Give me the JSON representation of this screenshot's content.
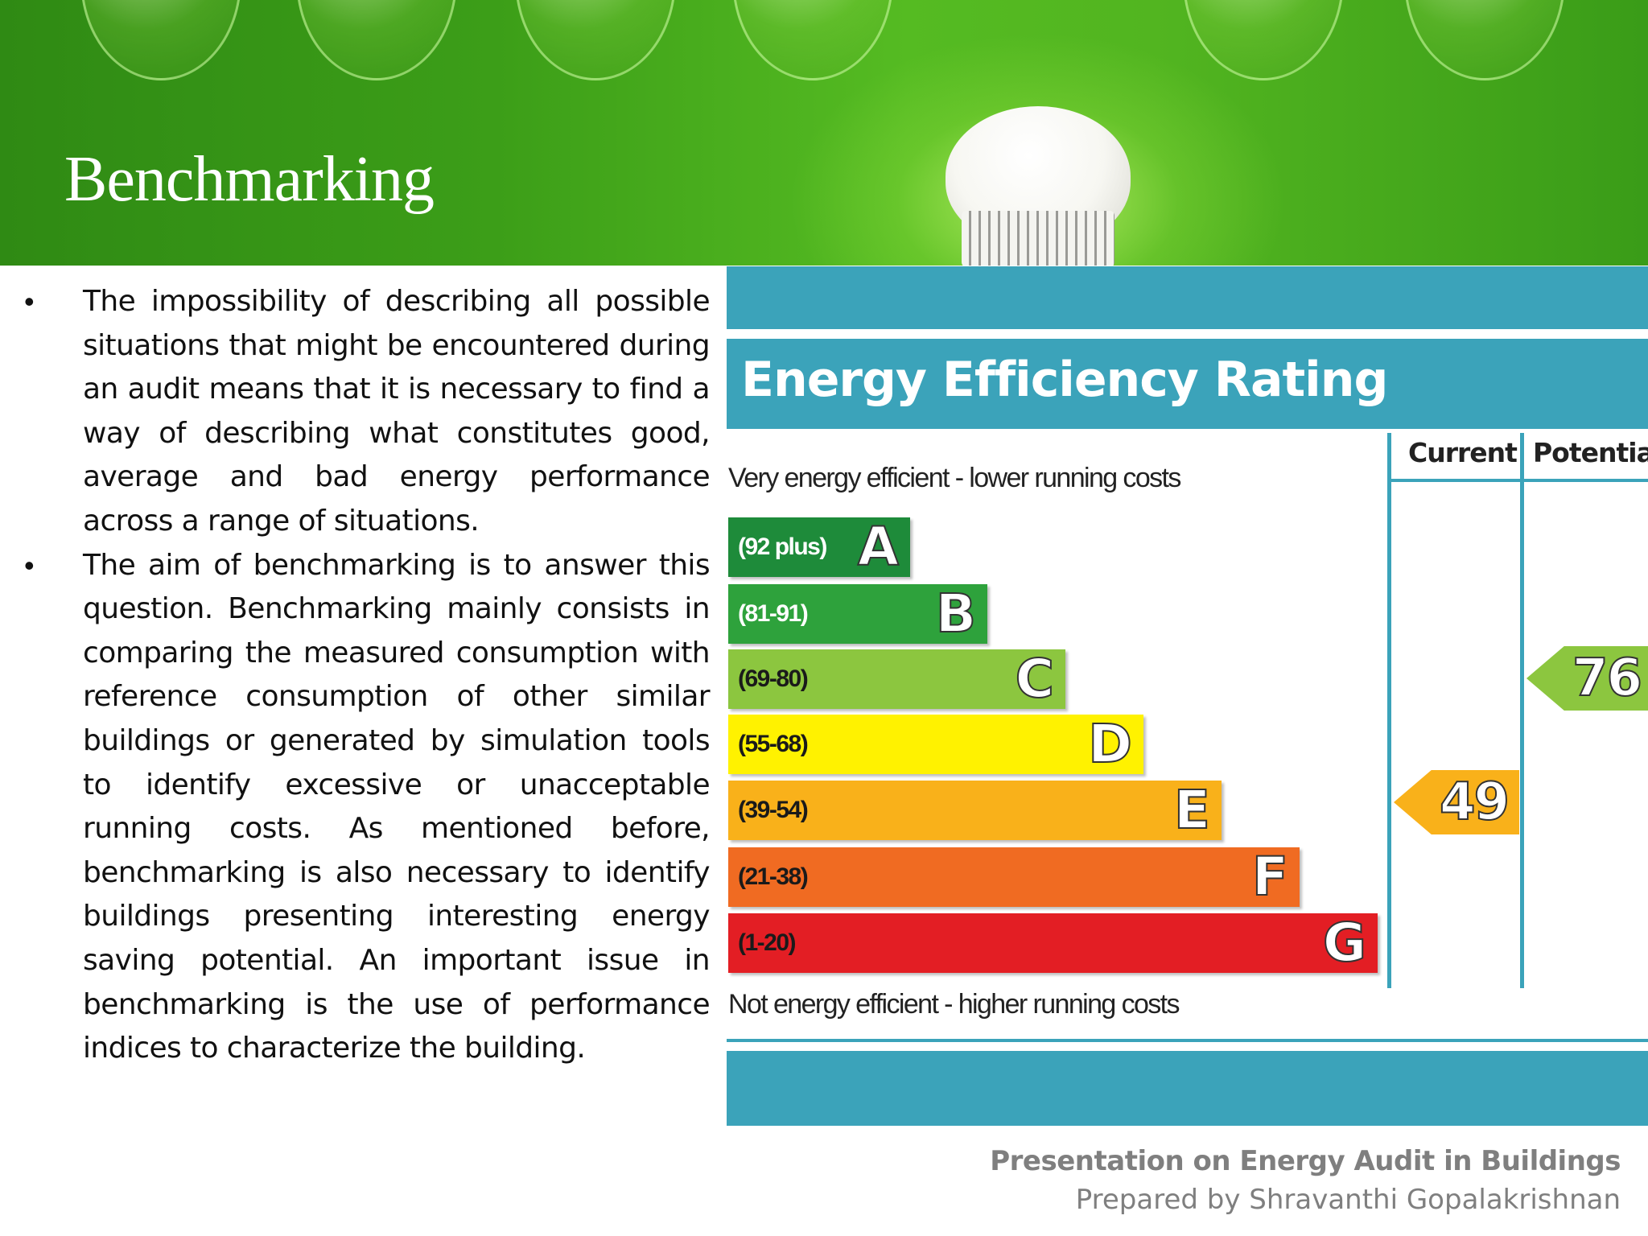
{
  "slide": {
    "title": "Benchmarking",
    "bullets": [
      "The impossibility of describing all possible situations that might be encountered during an audit means that it is necessary to find a way of describing what constitutes good, average and bad energy performance across a range of situations.",
      "The aim of benchmarking is to answer this question. Benchmarking mainly consists in comparing the measured consumption with reference consumption of other similar buildings or generated by simulation tools to identify excessive or unacceptable running costs. As mentioned before, benchmarking is also necessary to identify buildings presenting interesting energy saving potential. An important issue in benchmarking is the use of performance indices to characterize the building."
    ]
  },
  "epc": {
    "title": "Energy Efficiency Rating",
    "col_current": "Current",
    "col_potential": "Potential",
    "top_caption": "Very energy efficient - lower running costs",
    "bottom_caption": "Not energy efficient - higher running costs",
    "bands": [
      {
        "range": "(92 plus)",
        "letter": "A",
        "color": "#1e8b3a"
      },
      {
        "range": "(81-91)",
        "letter": "B",
        "color": "#2ea23c"
      },
      {
        "range": "(69-80)",
        "letter": "C",
        "color": "#8cc63f"
      },
      {
        "range": "(55-68)",
        "letter": "D",
        "color": "#fff200"
      },
      {
        "range": "(39-54)",
        "letter": "E",
        "color": "#f9b11a"
      },
      {
        "range": "(21-38)",
        "letter": "F",
        "color": "#f06b22"
      },
      {
        "range": "(1-20)",
        "letter": "G",
        "color": "#e31e24"
      }
    ],
    "current_value": "49",
    "current_color": "#f9b11a",
    "potential_value": "76",
    "potential_color": "#8cc63f"
  },
  "footer": {
    "line1": "Presentation on Energy Audit in Buildings",
    "line2": "Prepared by Shravanthi Gopalakrishnan"
  }
}
